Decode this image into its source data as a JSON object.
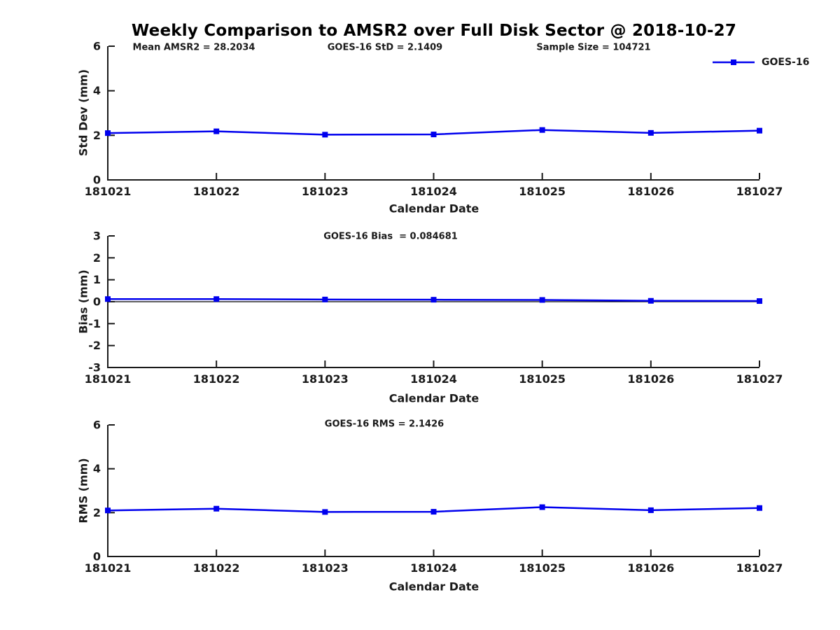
{
  "figure": {
    "title": "Weekly Comparison to AMSR2 over Full Disk Sector @ 2018-10-27",
    "background_color": "#ffffff",
    "text_color": "#1a1a1a",
    "accent_color": "#0000EE"
  },
  "legend": {
    "label": "GOES-16",
    "color": "#0000EE",
    "marker": "square",
    "position": "top-right"
  },
  "chart_data": [
    {
      "type": "line",
      "name": "std-dev",
      "ylabel": "Std Dev (mm)",
      "xlabel": "Calendar Date",
      "categories": [
        "181021",
        "181022",
        "181023",
        "181024",
        "181025",
        "181026",
        "181027"
      ],
      "series": [
        {
          "name": "GOES-16",
          "color": "#0000EE",
          "marker": "square",
          "values": [
            2.1,
            2.18,
            2.03,
            2.04,
            2.24,
            2.11,
            2.21
          ]
        }
      ],
      "ylim": [
        0,
        6
      ],
      "yticks": [
        0,
        2,
        4,
        6
      ],
      "zero_line": false,
      "grid": false,
      "annotations": [
        {
          "text": "Mean AMSR2 = 28.2034"
        },
        {
          "text": "GOES-16 StD = 2.1409"
        },
        {
          "text": "Sample Size = 104721"
        }
      ]
    },
    {
      "type": "line",
      "name": "bias",
      "ylabel": "Bias (mm)",
      "xlabel": "Calendar Date",
      "categories": [
        "181021",
        "181022",
        "181023",
        "181024",
        "181025",
        "181026",
        "181027"
      ],
      "series": [
        {
          "name": "GOES-16",
          "color": "#0000EE",
          "marker": "square",
          "values": [
            0.12,
            0.12,
            0.1,
            0.09,
            0.08,
            0.04,
            0.03
          ]
        }
      ],
      "ylim": [
        -3,
        3
      ],
      "yticks": [
        -3,
        -2,
        -1,
        0,
        1,
        2,
        3
      ],
      "zero_line": true,
      "grid": false,
      "annotations": [
        {
          "text": "GOES-16 Bias  = 0.084681"
        }
      ]
    },
    {
      "type": "line",
      "name": "rms",
      "ylabel": "RMS (mm)",
      "xlabel": "Calendar Date",
      "categories": [
        "181021",
        "181022",
        "181023",
        "181024",
        "181025",
        "181026",
        "181027"
      ],
      "series": [
        {
          "name": "GOES-16",
          "color": "#0000EE",
          "marker": "square",
          "values": [
            2.1,
            2.18,
            2.03,
            2.04,
            2.25,
            2.11,
            2.21
          ]
        }
      ],
      "ylim": [
        0,
        6
      ],
      "yticks": [
        0,
        2,
        4,
        6
      ],
      "zero_line": false,
      "grid": false,
      "annotations": [
        {
          "text": "GOES-16 RMS = 2.1426"
        }
      ]
    }
  ]
}
